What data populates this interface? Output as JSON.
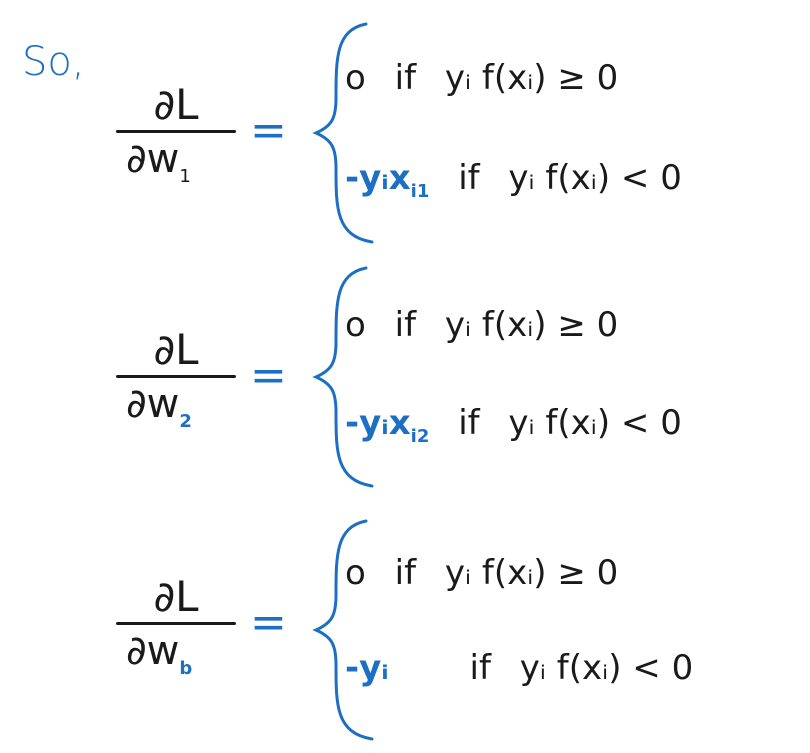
{
  "intro": "So,",
  "derivatives": [
    {
      "numerator": "∂L",
      "denominator": "∂w",
      "subscript": "1",
      "equals": "=",
      "case1": {
        "value": "o",
        "condition_word": "if",
        "condition": "yᵢ f(xᵢ) ≥ 0"
      },
      "case2": {
        "coef": "-yᵢ",
        "x": "x",
        "x_sub": "i1",
        "condition_word": "if",
        "condition": "yᵢ f(xᵢ) < 0"
      }
    },
    {
      "numerator": "∂L",
      "denominator": "∂w",
      "subscript": "2",
      "equals": "=",
      "case1": {
        "value": "o",
        "condition_word": "if",
        "condition": "yᵢ f(xᵢ) ≥ 0"
      },
      "case2": {
        "coef": "-yᵢ",
        "x": "x",
        "x_sub": "i2",
        "condition_word": "if",
        "condition": "yᵢ f(xᵢ) < 0"
      }
    },
    {
      "numerator": "∂L",
      "denominator": "∂w",
      "subscript": "b",
      "equals": "=",
      "case1": {
        "value": "o",
        "condition_word": "if",
        "condition": "yᵢ f(xᵢ) ≥ 0"
      },
      "case2": {
        "coef": "-yᵢ",
        "condition_word": "if",
        "condition": "yᵢ f(xᵢ) < 0"
      }
    }
  ],
  "colors": {
    "ink": "#1a1a1a",
    "accent": "#1c6fc2"
  }
}
